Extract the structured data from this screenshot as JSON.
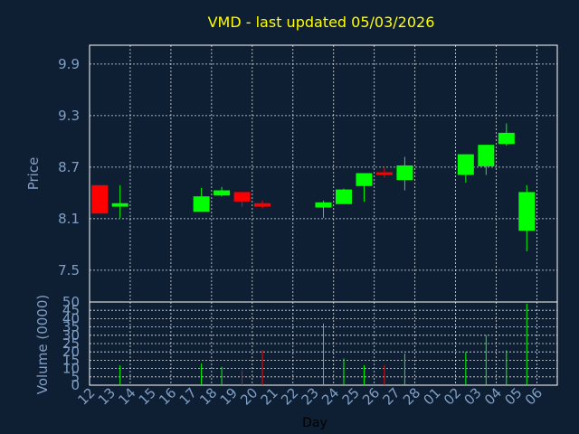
{
  "chart_data": {
    "type": "candlestick",
    "title": "VMD - last updated 05/03/2026",
    "xlabel": "Day",
    "price_panel": {
      "ylabel": "Price",
      "yticks": [
        "9.9",
        "9.3",
        "8.7",
        "8.1",
        "7.5"
      ],
      "ylim": [
        7.13,
        10.12
      ]
    },
    "volume_panel": {
      "ylabel": "Volume (0000)",
      "yticks": [
        "50",
        "45",
        "40",
        "35",
        "30",
        "25",
        "20",
        "15",
        "10",
        "5",
        "0"
      ],
      "ylim": [
        0,
        50
      ]
    },
    "day_labels": [
      "12",
      "13",
      "14",
      "15",
      "16",
      "17",
      "18",
      "19",
      "20",
      "21",
      "22",
      "23",
      "24",
      "25",
      "26",
      "27",
      "28",
      "01",
      "02",
      "03",
      "04",
      "05",
      "06"
    ],
    "candles": [
      {
        "day": "12",
        "open": 8.49,
        "close": 8.16,
        "high": 8.49,
        "low": 8.16,
        "volume": 0
      },
      {
        "day": "13",
        "open": 8.24,
        "close": 8.28,
        "high": 8.49,
        "low": 8.11,
        "volume": 12
      },
      {
        "day": "17",
        "open": 8.18,
        "close": 8.36,
        "high": 8.46,
        "low": 8.18,
        "volume": 13
      },
      {
        "day": "18",
        "open": 8.37,
        "close": 8.43,
        "high": 8.47,
        "low": 8.36,
        "volume": 11
      },
      {
        "day": "19",
        "open": 8.41,
        "close": 8.3,
        "high": 8.41,
        "low": 8.24,
        "volume": 9
      },
      {
        "day": "20",
        "open": 8.28,
        "close": 8.24,
        "high": 8.31,
        "low": 8.22,
        "volume": 21
      },
      {
        "day": "23",
        "open": 8.23,
        "close": 8.29,
        "high": 8.31,
        "low": 8.11,
        "volume": 37
      },
      {
        "day": "24",
        "open": 8.27,
        "close": 8.44,
        "high": 8.45,
        "low": 8.27,
        "volume": 16
      },
      {
        "day": "25",
        "open": 8.48,
        "close": 8.63,
        "high": 8.63,
        "low": 8.3,
        "volume": 12
      },
      {
        "day": "26",
        "open": 8.64,
        "close": 8.61,
        "high": 8.69,
        "low": 8.58,
        "volume": 12
      },
      {
        "day": "27",
        "open": 8.55,
        "close": 8.72,
        "high": 8.82,
        "low": 8.43,
        "volume": 19
      },
      {
        "day": "02",
        "open": 8.61,
        "close": 8.85,
        "high": 8.85,
        "low": 8.52,
        "volume": 20
      },
      {
        "day": "03",
        "open": 8.71,
        "close": 8.96,
        "high": 8.96,
        "low": 8.61,
        "volume": 30
      },
      {
        "day": "04",
        "open": 8.97,
        "close": 9.1,
        "high": 9.21,
        "low": 8.95,
        "volume": 21
      },
      {
        "day": "05",
        "open": 7.96,
        "close": 8.41,
        "high": 8.49,
        "low": 7.72,
        "volume": 49
      }
    ],
    "colors": {
      "up": "#00ff00",
      "down": "#ff0000",
      "background": "#0f1f33",
      "title": "#ffff00",
      "axis_text": "#7f9fc6",
      "grid": "#ffffff"
    },
    "grid": true
  }
}
